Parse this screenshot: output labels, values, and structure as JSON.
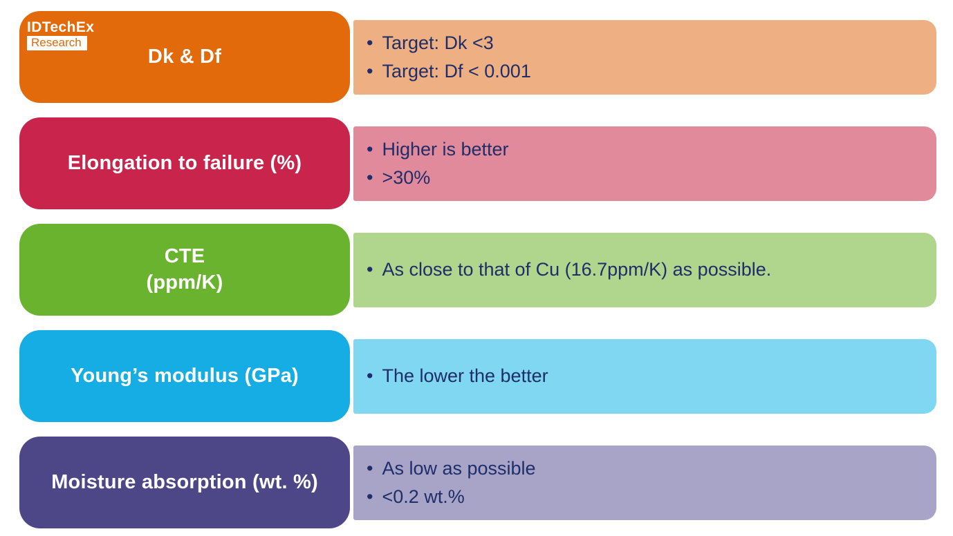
{
  "logo": {
    "brand": "IDTechEx",
    "sub": "Research"
  },
  "colors": {
    "background": "#FFFFFF",
    "bullet_text": "#1F2D68",
    "label_text": "#FFFFFF"
  },
  "rows": [
    {
      "label": "Dk & Df",
      "panel_color": "#E26A0B",
      "desc_color": "#EEB083",
      "bullets": [
        "Target: Dk <3",
        "Target: Df < 0.001"
      ]
    },
    {
      "label": "Elongation to failure (%)",
      "panel_color": "#C8244C",
      "desc_color": "#E18A9C",
      "bullets": [
        "Higher is better",
        ">30%"
      ]
    },
    {
      "label": "CTE\n(ppm/K)",
      "panel_color": "#6AB32E",
      "desc_color": "#AFD68C",
      "bullets": [
        "As close to that of Cu (16.7ppm/K) as possible."
      ]
    },
    {
      "label": "Young’s modulus (GPa)",
      "panel_color": "#16ADE4",
      "desc_color": "#7FD7F2",
      "bullets": [
        "The lower the better"
      ]
    },
    {
      "label": "Moisture absorption (wt. %)",
      "panel_color": "#4D4788",
      "desc_color": "#A7A4C8",
      "bullets": [
        "As low as possible",
        "<0.2 wt.%"
      ]
    }
  ]
}
